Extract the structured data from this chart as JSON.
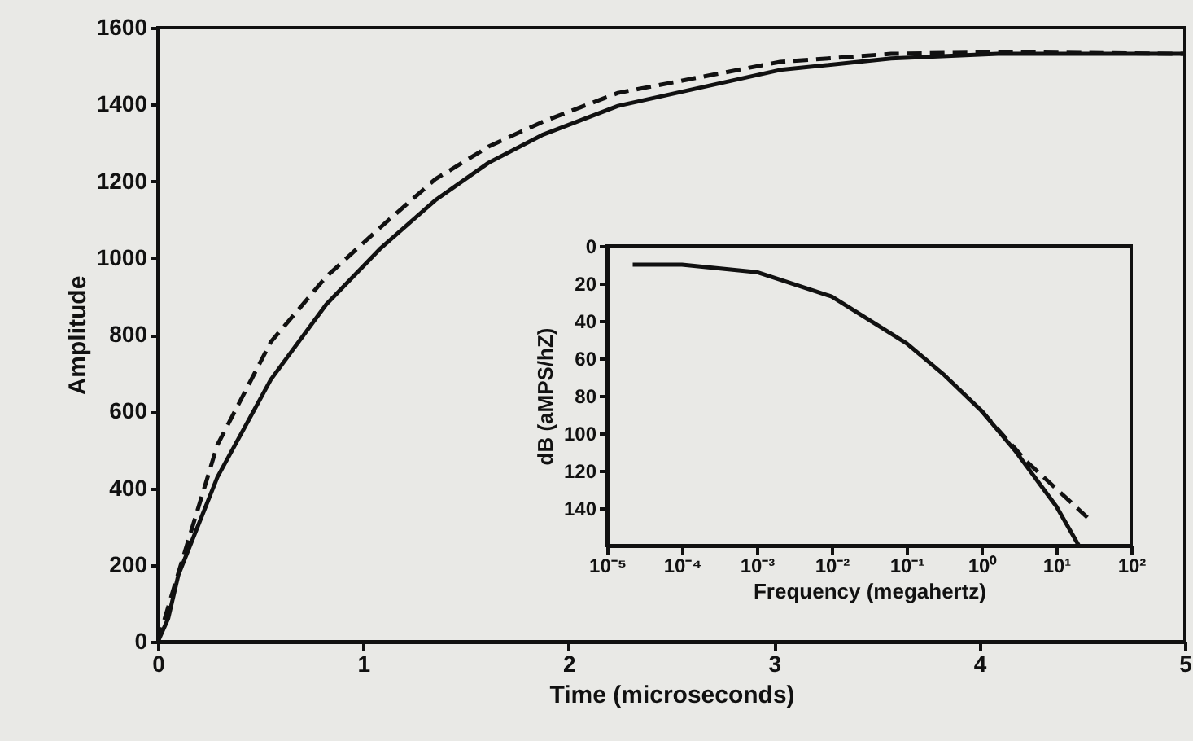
{
  "chart_data": [
    {
      "type": "line",
      "xlabel": "Time (microseconds)",
      "ylabel": "Amplitude",
      "xlim": [
        0,
        5
      ],
      "ylim": [
        0,
        1600
      ],
      "xticks": [
        0,
        1,
        2,
        3,
        4,
        5
      ],
      "yticks": [
        0,
        200,
        400,
        600,
        800,
        1000,
        1200,
        1400,
        1600
      ],
      "grid": false,
      "series": [
        {
          "color": "#111111",
          "line_style": "solid",
          "x": [
            0,
            0.05,
            0.1,
            0.29,
            0.55,
            0.82,
            1.08,
            1.35,
            1.61,
            1.87,
            2.24,
            3.03,
            3.57,
            4.09,
            5
          ],
          "values": [
            0,
            60,
            174,
            429,
            683,
            879,
            1023,
            1150,
            1248,
            1320,
            1396,
            1490,
            1520,
            1532,
            1532
          ]
        },
        {
          "color": "#111111",
          "line_style": "dashed",
          "x": [
            0,
            0.08,
            0.29,
            0.55,
            0.82,
            1.08,
            1.35,
            1.61,
            1.87,
            2.24,
            3.03,
            3.57,
            4.09,
            5
          ],
          "values": [
            0,
            144,
            513,
            781,
            951,
            1078,
            1205,
            1290,
            1354,
            1430,
            1511,
            1532,
            1536,
            1532
          ]
        }
      ]
    },
    {
      "type": "line",
      "xlabel": "Frequency (megahertz)",
      "ylabel": "dB (aMPS/hZ)",
      "log": "x",
      "xlim": [
        1e-05,
        100
      ],
      "ylim": [
        160,
        0
      ],
      "xticks": [
        {
          "value": 1e-05,
          "label": "10⁻⁵"
        },
        {
          "value": 0.0001,
          "label": "10⁻⁴"
        },
        {
          "value": 0.001,
          "label": "10⁻³"
        },
        {
          "value": 0.01,
          "label": "10⁻²"
        },
        {
          "value": 0.1,
          "label": "10⁻¹"
        },
        {
          "value": 1,
          "label": "10⁰"
        },
        {
          "value": 10,
          "label": "10¹"
        },
        {
          "value": 100,
          "label": "10²"
        }
      ],
      "yticks": [
        0,
        20,
        40,
        60,
        80,
        100,
        120,
        140
      ],
      "grid": false,
      "series": [
        {
          "color": "#111111",
          "line_style": "solid",
          "x": [
            2.2e-05,
            0.0001,
            0.001,
            0.01,
            0.1,
            0.32,
            1,
            2.9,
            10,
            20
          ],
          "values": [
            10,
            10,
            14,
            27,
            52,
            69,
            88,
            110,
            139,
            160
          ]
        },
        {
          "color": "#111111",
          "line_style": "dashed",
          "x": [
            1,
            1.5,
            4,
            26
          ],
          "values": [
            88,
            96,
            115,
            145
          ]
        }
      ]
    }
  ]
}
